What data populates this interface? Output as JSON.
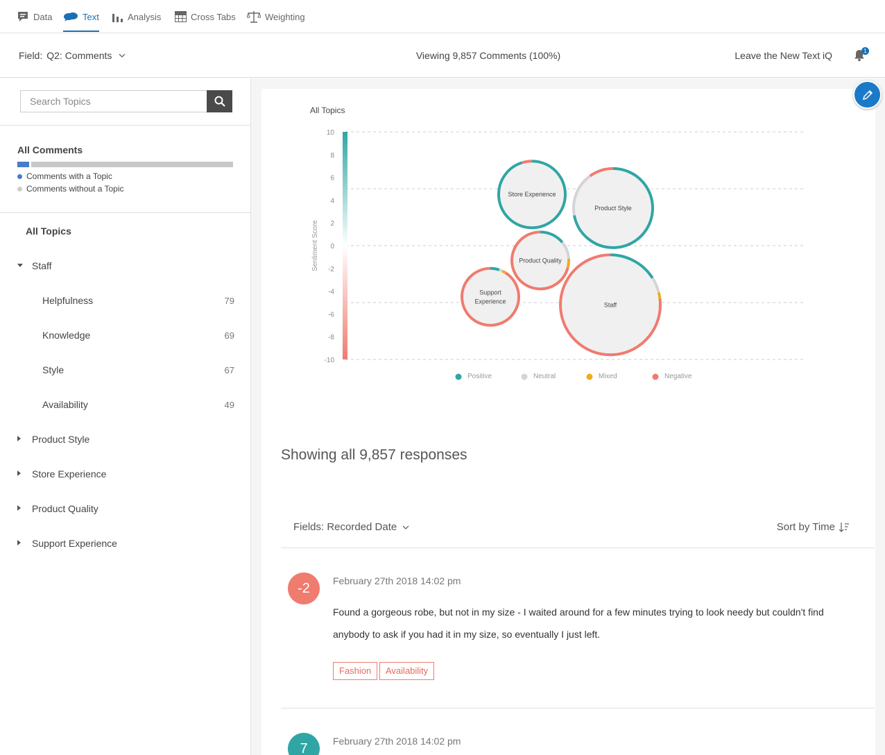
{
  "nav": {
    "tabs": [
      {
        "label": "Data",
        "icon": "comment-icon",
        "active": false
      },
      {
        "label": "Text",
        "icon": "speech-bubbles-icon",
        "active": true
      },
      {
        "label": "Analysis",
        "icon": "bar-chart-icon",
        "active": false
      },
      {
        "label": "Cross Tabs",
        "icon": "grid-icon",
        "active": false
      },
      {
        "label": "Weighting",
        "icon": "scale-icon",
        "active": false
      }
    ]
  },
  "fieldbar": {
    "field_label": "Field:",
    "field_value": "Q2: Comments",
    "viewing": "Viewing 9,857 Comments (100%)",
    "leave": "Leave the New Text iQ",
    "notification_count": "1"
  },
  "sidebar": {
    "search_placeholder": "Search Topics",
    "all_comments_title": "All Comments",
    "with_topic_fraction": 0.055,
    "legend_with": "Comments with a Topic",
    "legend_without": "Comments without a Topic",
    "all_topics": "All Topics",
    "topics": [
      {
        "label": "Staff",
        "expanded": true,
        "children": [
          {
            "label": "Helpfulness",
            "count": "79"
          },
          {
            "label": "Knowledge",
            "count": "69"
          },
          {
            "label": "Style",
            "count": "67"
          },
          {
            "label": "Availability",
            "count": "49"
          }
        ]
      },
      {
        "label": "Product Style",
        "expanded": false
      },
      {
        "label": "Store Experience",
        "expanded": false
      },
      {
        "label": "Product Quality",
        "expanded": false
      },
      {
        "label": "Support Experience",
        "expanded": false
      }
    ]
  },
  "colors": {
    "positive": "#2fa6a4",
    "neutral": "#d4d4d4",
    "mixed": "#f2ab1a",
    "negative": "#f07b6f",
    "accent": "#1a6fb4"
  },
  "chart_data": {
    "type": "bubble",
    "title": "All Topics",
    "ylabel": "Sentiment Score",
    "ylim": [
      -10,
      10
    ],
    "yticks": [
      10,
      8,
      6,
      4,
      2,
      0,
      -2,
      -4,
      -6,
      -8,
      -10
    ],
    "legend": [
      "Positive",
      "Neutral",
      "Mixed",
      "Negative"
    ],
    "bubbles": [
      {
        "name": "Store Experience",
        "score": 4.5,
        "mix": {
          "positive": 0.95,
          "neutral": 0,
          "mixed": 0,
          "negative": 0.05
        }
      },
      {
        "name": "Product Style",
        "score": 3.3,
        "mix": {
          "positive": 0.72,
          "neutral": 0.18,
          "mixed": 0,
          "negative": 0.1
        }
      },
      {
        "name": "Product Quality",
        "score": -1.3,
        "mix": {
          "positive": 0.14,
          "neutral": 0.1,
          "mixed": 0.05,
          "negative": 0.71
        }
      },
      {
        "name": "Support Experience",
        "score": -4.5,
        "mix": {
          "positive": 0.05,
          "neutral": 0.02,
          "mixed": 0.02,
          "negative": 0.91
        }
      },
      {
        "name": "Staff",
        "score": -5.2,
        "mix": {
          "positive": 0.16,
          "neutral": 0.05,
          "mixed": 0.02,
          "negative": 0.77
        }
      }
    ]
  },
  "responses": {
    "heading": "Showing all 9,857 responses",
    "fields_label": "Fields: Recorded Date",
    "sort_label": "Sort by Time",
    "items": [
      {
        "score": "-2",
        "date": "February 27th 2018 14:02 pm",
        "text": "Found a gorgeous robe, but not in my size - I waited around for a few minutes trying to look needy but couldn't find anybody to ask if you had it in my size, so eventually I just left.",
        "tags": [
          "Fashion",
          "Availability"
        ]
      },
      {
        "score": "7",
        "date": "February 27th 2018 14:02 pm"
      }
    ]
  }
}
